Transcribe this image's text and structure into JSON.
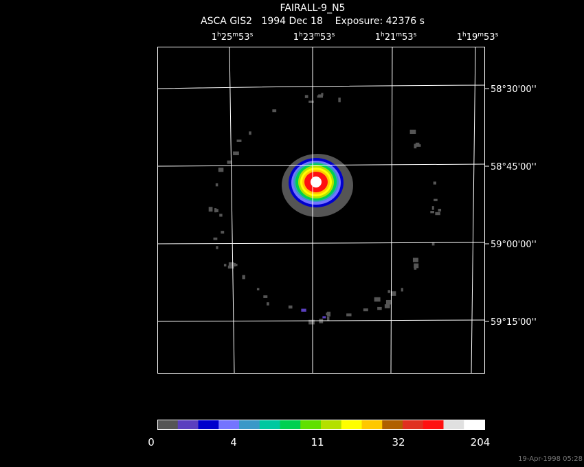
{
  "header": {
    "title": "FAIRALL-9_N5",
    "subtitle": "ASCA GIS2   1994 Dec 18    Exposure: 42376 s"
  },
  "ra_labels": [
    [
      "1",
      "h",
      "25",
      "m",
      "53",
      "s"
    ],
    [
      "1",
      "h",
      "23",
      "m",
      "53",
      "s"
    ],
    [
      "1",
      "h",
      "21",
      "m",
      "53",
      "s"
    ],
    [
      "1",
      "h",
      "19",
      "m",
      "53",
      "s"
    ]
  ],
  "dec_labels": [
    "58°30'00''",
    "58°45'00''",
    "59°00'00''",
    "59°15'00''"
  ],
  "colorbar": {
    "colors": [
      "#555555",
      "#5a3fbf",
      "#0000cc",
      "#7474ff",
      "#3a98c8",
      "#00c8a0",
      "#00d050",
      "#60e000",
      "#b4e000",
      "#ffff00",
      "#ffc800",
      "#b06000",
      "#e03020",
      "#ff1010",
      "#e0e0e0",
      "#ffffff"
    ],
    "labels": [
      "0",
      "4",
      "11",
      "32",
      "204"
    ]
  },
  "timestamp": "19-Apr-1998 05:28"
}
